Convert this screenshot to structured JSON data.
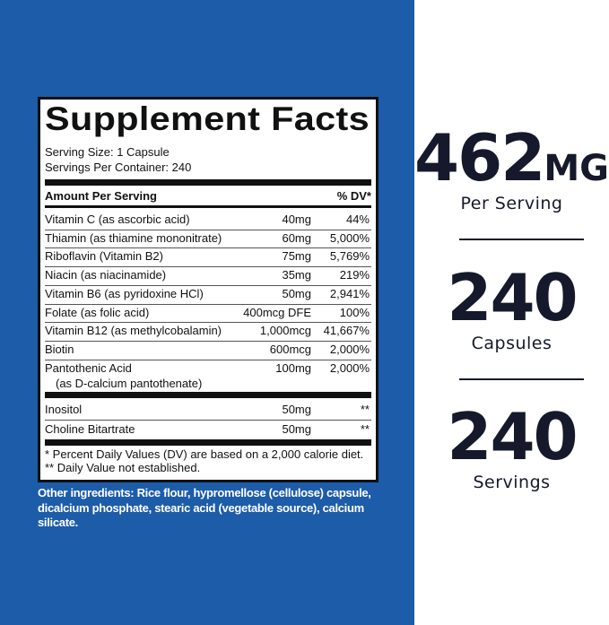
{
  "label": {
    "title": "Supplement Facts",
    "serving_size": "Serving Size: 1 Capsule",
    "servings_per_container": "Servings Per Container: 240",
    "header": {
      "amount": "Amount Per Serving",
      "dv": "% DV*"
    },
    "rows": [
      {
        "name": "Vitamin C (as ascorbic acid)",
        "amount": "40mg",
        "dv": "44%"
      },
      {
        "name": "Thiamin (as thiamine mononitrate)",
        "amount": "60mg",
        "dv": "5,000%"
      },
      {
        "name": "Riboflavin (Vitamin B2)",
        "amount": "75mg",
        "dv": "5,769%"
      },
      {
        "name": "Niacin (as niacinamide)",
        "amount": "35mg",
        "dv": "219%"
      },
      {
        "name": "Vitamin B6 (as pyridoxine HCl)",
        "amount": "50mg",
        "dv": "2,941%"
      },
      {
        "name": "Folate (as folic acid)",
        "amount": "400mcg DFE",
        "dv": "100%"
      },
      {
        "name": "Vitamin B12 (as methylcobalamin)",
        "amount": "1,000mcg",
        "dv": "41,667%"
      },
      {
        "name": "Biotin",
        "amount": "600mcg",
        "dv": "2,000%"
      },
      {
        "name": "Pantothenic Acid",
        "detail": "(as D-calcium pantothenate)",
        "amount": "100mg",
        "dv": "2,000%"
      }
    ],
    "other_rows": [
      {
        "name": "Inositol",
        "amount": "50mg",
        "dv": "**"
      },
      {
        "name": "Choline Bitartrate",
        "amount": "50mg",
        "dv": "**"
      }
    ],
    "footnotes": [
      "* Percent Daily Values (DV) are based on a 2,000 calorie diet.",
      "** Daily Value not established."
    ]
  },
  "other_ingredients": [
    "Other ingredients: Rice flour, hypromellose (cellulose) capsule,",
    "dicalcium phosphate, stearic acid (vegetable source), calcium",
    "silicate."
  ],
  "stats": [
    {
      "value": "462",
      "unit": "MG",
      "label": "Per Serving"
    },
    {
      "value": "240",
      "label": "Capsules"
    },
    {
      "value": "240",
      "label": "Servings"
    }
  ]
}
